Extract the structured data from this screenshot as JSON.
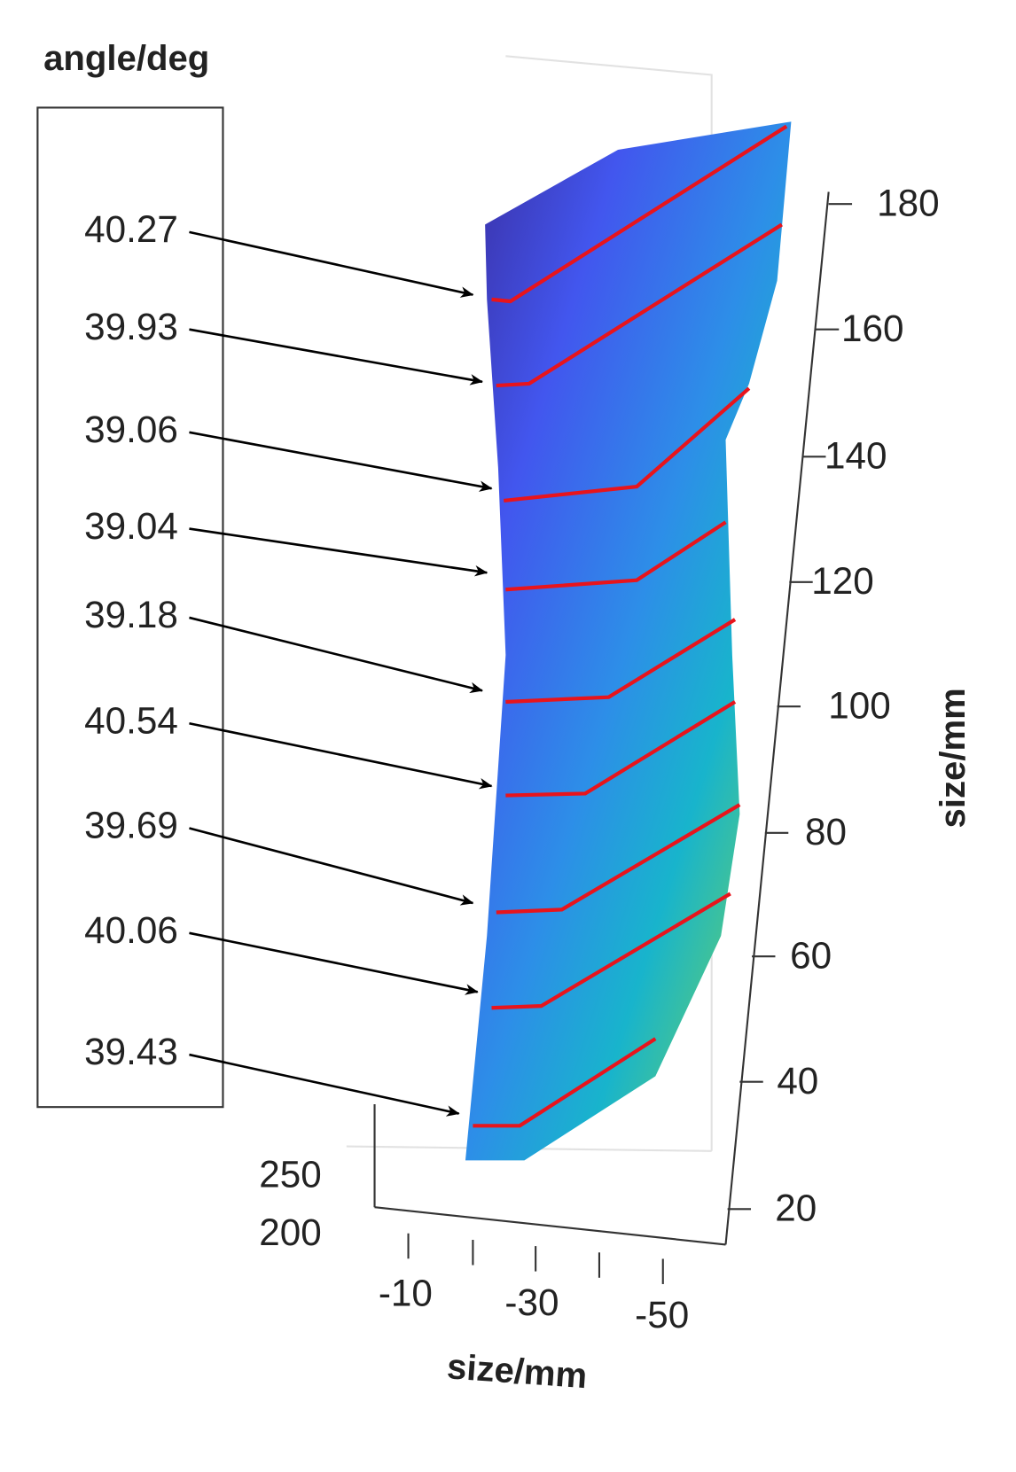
{
  "header": {
    "title": "angle/deg"
  },
  "annotations": [
    "40.27",
    "39.93",
    "39.06",
    "39.04",
    "39.18",
    "40.54",
    "39.69",
    "40.06",
    "39.43"
  ],
  "axes": {
    "vertical": {
      "label": "size/mm",
      "ticks": [
        "180",
        "160",
        "140",
        "120",
        "100",
        "80",
        "60",
        "40",
        "20"
      ]
    },
    "horizontal": {
      "label": "size/mm",
      "ticks": [
        "-10",
        "-30",
        "-50"
      ]
    },
    "depth": {
      "ticks": [
        "250",
        "200"
      ]
    }
  }
}
